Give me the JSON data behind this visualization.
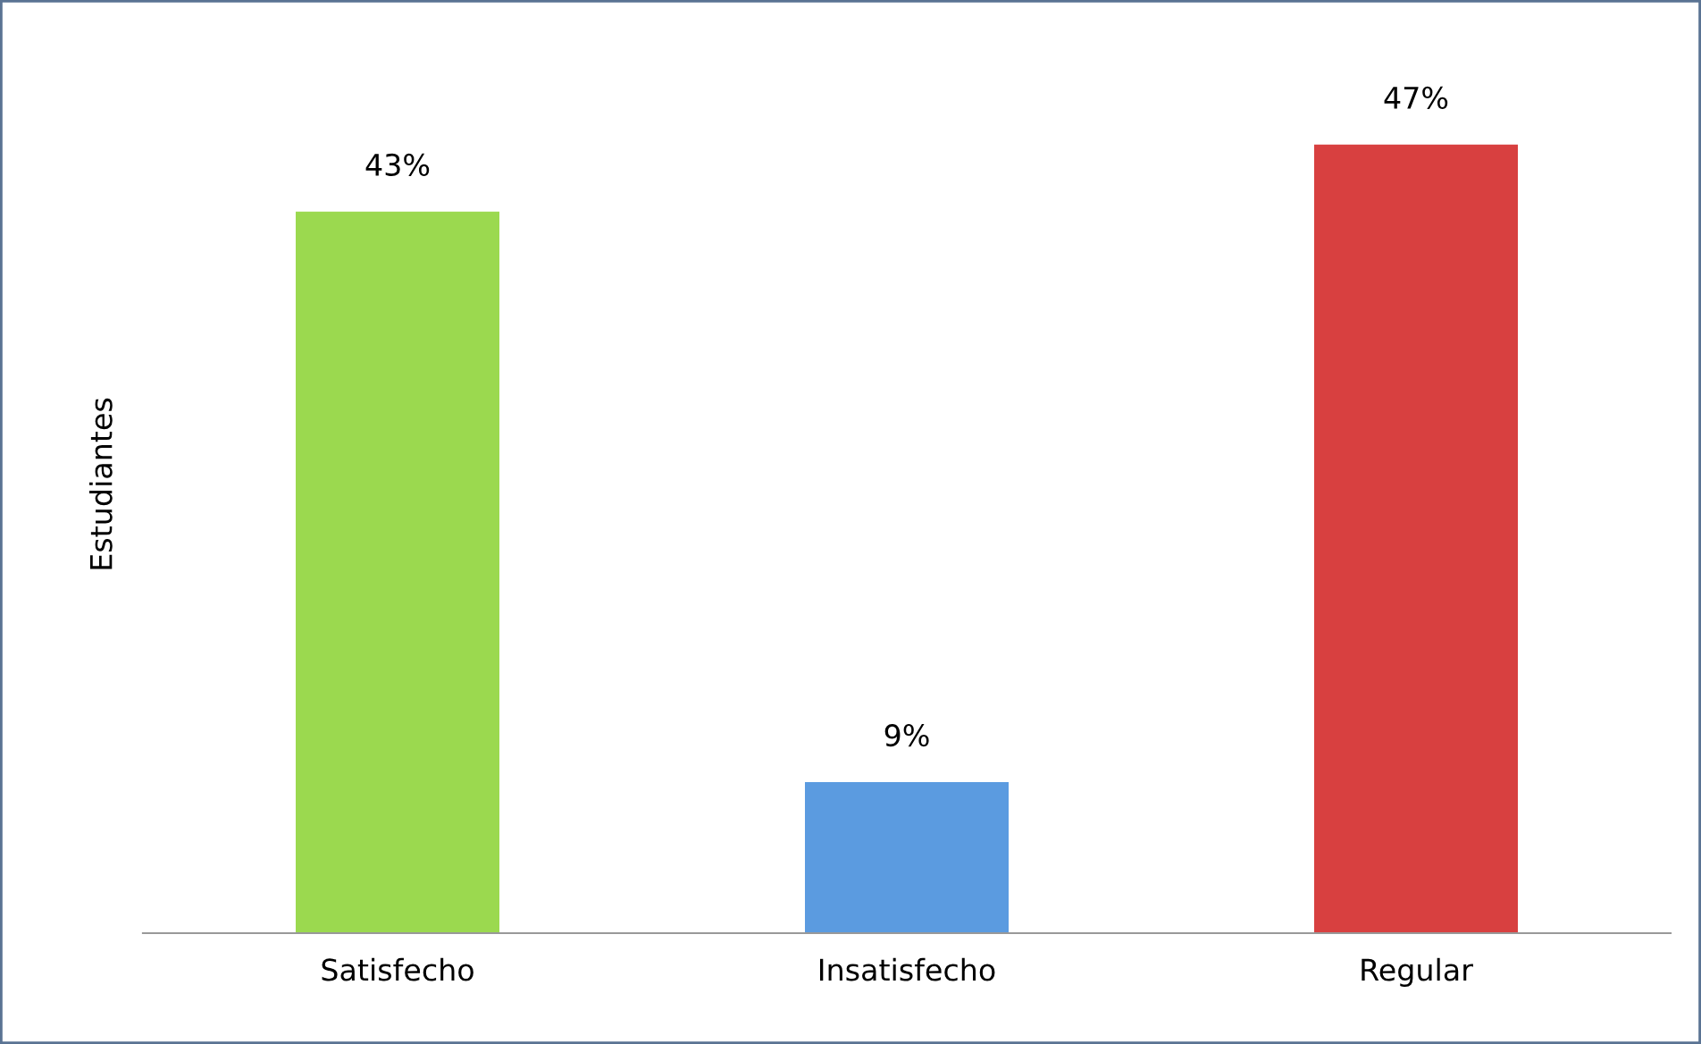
{
  "chart_data": {
    "type": "bar",
    "ylabel": "Estudiantes",
    "categories": [
      "Satisfecho",
      "Insatisfecho",
      "Regular"
    ],
    "values": [
      43,
      9,
      47
    ],
    "value_labels": [
      "43%",
      "9%",
      "47%"
    ],
    "colors": [
      "#9bd94f",
      "#5b9be0",
      "#d84040"
    ],
    "grid": false,
    "legend": false
  }
}
